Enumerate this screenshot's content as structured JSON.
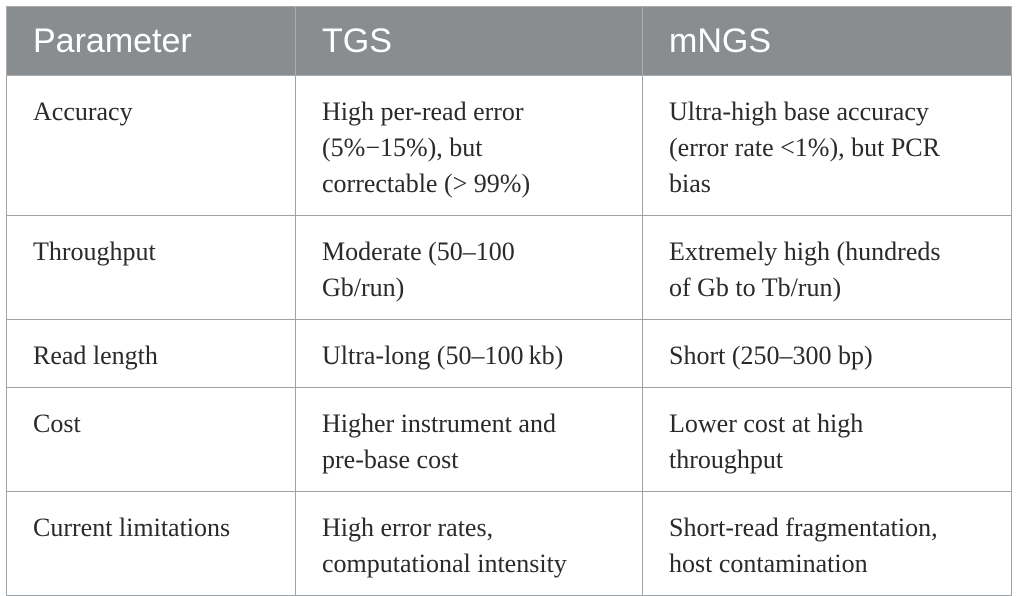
{
  "table": {
    "headers": [
      "Parameter",
      "TGS",
      "mNGS"
    ],
    "rows": [
      {
        "parameter": "Accuracy",
        "tgs": [
          "High per-read error",
          "(5%−15%), but",
          "correctable (> 99%)"
        ],
        "mngs": [
          "Ultra-high base accuracy",
          "(error rate <1%), but PCR",
          "bias"
        ]
      },
      {
        "parameter": "Throughput",
        "tgs": [
          "Moderate (50–100",
          "Gb/run)"
        ],
        "mngs": [
          "Extremely high (hundreds",
          "of Gb to Tb/run)"
        ]
      },
      {
        "parameter": "Read length",
        "tgs": [
          "Ultra-long (50–100 kb)"
        ],
        "mngs": [
          "Short (250–300 bp)"
        ]
      },
      {
        "parameter": "Cost",
        "tgs": [
          "Higher instrument and",
          "pre-base cost"
        ],
        "mngs": [
          "Lower cost at high",
          "throughput"
        ]
      },
      {
        "parameter": "Current limitations",
        "tgs": [
          "High error rates,",
          "computational intensity"
        ],
        "mngs": [
          "Short-read fragmentation,",
          "host contamination"
        ]
      }
    ]
  }
}
